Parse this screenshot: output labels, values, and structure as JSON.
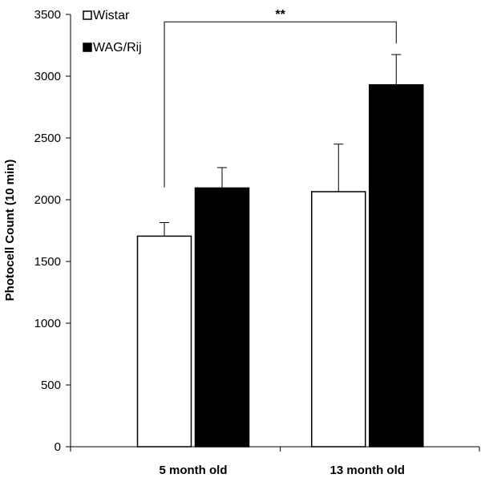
{
  "chart_data": {
    "type": "bar",
    "title": "",
    "xlabel": "",
    "ylabel": "Photocell Count (10 min)",
    "ylim": [
      0,
      3500
    ],
    "yticks": [
      "0",
      "500",
      "1000",
      "1500",
      "2000",
      "2500",
      "3000",
      "3500"
    ],
    "categories": [
      "5 month old",
      "13 month old"
    ],
    "series": [
      {
        "name": "Wistar",
        "color": "#ffffff",
        "values": [
          1705,
          2065
        ],
        "errors": [
          110,
          385
        ]
      },
      {
        "name": "WAG/Rij",
        "color": "#000000",
        "values": [
          2095,
          2930
        ],
        "errors": [
          165,
          245
        ]
      }
    ],
    "legend_position": "top-left",
    "grid": false,
    "annotation": {
      "text": "**",
      "from": {
        "category": 0,
        "series": 0
      },
      "to": {
        "category": 1,
        "series": 1
      }
    }
  }
}
